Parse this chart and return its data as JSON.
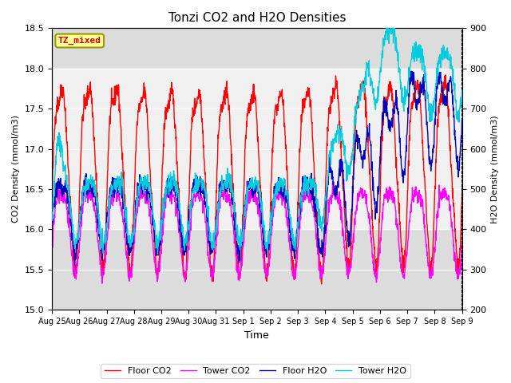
{
  "title": "Tonzi CO2 and H2O Densities",
  "xlabel": "Time",
  "ylabel_left": "CO2 Density (mmol/m3)",
  "ylabel_right": "H2O Density (mmol/m3)",
  "ylim_left": [
    15.0,
    18.5
  ],
  "ylim_right": [
    200,
    900
  ],
  "yticks_left": [
    15.0,
    15.5,
    16.0,
    16.5,
    17.0,
    17.5,
    18.0,
    18.5
  ],
  "yticks_right": [
    200,
    300,
    400,
    500,
    600,
    700,
    800,
    900
  ],
  "xtick_labels": [
    "Aug 25",
    "Aug 26",
    "Aug 27",
    "Aug 28",
    "Aug 29",
    "Aug 30",
    "Aug 31",
    "Sep 1",
    "Sep 2",
    "Sep 3",
    "Sep 4",
    "Sep 5",
    "Sep 6",
    "Sep 7",
    "Sep 8",
    "Sep 9"
  ],
  "n_days": 16,
  "shade_co2_low": 16.0,
  "shade_co2_high": 18.0,
  "colors": {
    "floor_co2": "#FF0000",
    "tower_co2": "#FF00FF",
    "floor_h2o": "#0000BB",
    "tower_h2o": "#00CCDD"
  },
  "legend_labels": [
    "Floor CO2",
    "Tower CO2",
    "Floor H2O",
    "Tower H2O"
  ],
  "annotation_text": "TZ_mixed",
  "annotation_color": "#CC0000",
  "annotation_bg": "#FFFF99",
  "annotation_border": "#999900",
  "background_color": "#DCDCDC",
  "white_band_color": "#F0F0F0",
  "linewidth": 1.0
}
